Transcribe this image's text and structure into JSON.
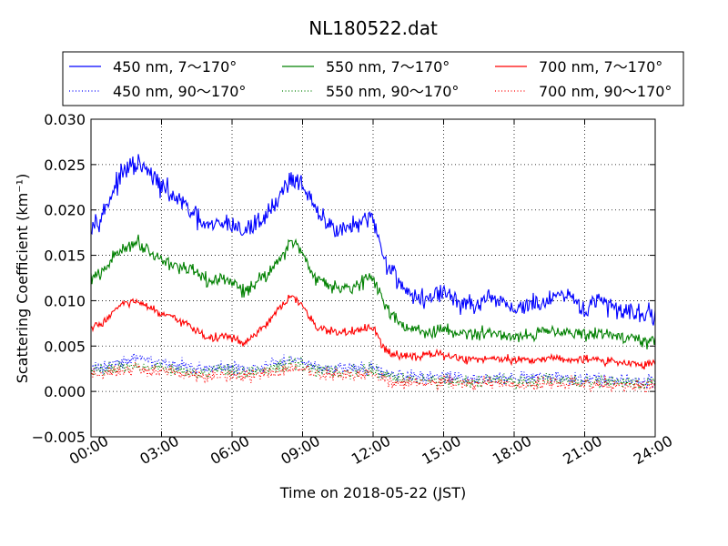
{
  "chart_data": {
    "type": "line",
    "title": "NL180522.dat",
    "xlabel": "Time on 2018-05-22 (JST)",
    "ylabel": "Scattering Coefficient (km⁻¹)",
    "xlim_hours": [
      0,
      24
    ],
    "ylim": [
      -0.005,
      0.03
    ],
    "yticks": [
      "0.030",
      "0.025",
      "0.020",
      "0.015",
      "0.010",
      "0.005",
      "0.000",
      "−0.005"
    ],
    "xticks": [
      "00:00",
      "03:00",
      "06:00",
      "09:00",
      "12:00",
      "15:00",
      "18:00",
      "21:00",
      "24:00"
    ],
    "grid": true,
    "legend_position": "top (above plot), 3 columns",
    "x": [
      0,
      0.5,
      1,
      1.5,
      2,
      2.5,
      3,
      3.5,
      4,
      4.5,
      5,
      5.5,
      6,
      6.5,
      7,
      7.5,
      8,
      8.5,
      9,
      9.5,
      10,
      10.5,
      11,
      11.5,
      12,
      12.5,
      13,
      13.5,
      14,
      14.5,
      15,
      15.5,
      16,
      16.5,
      17,
      17.5,
      18,
      18.5,
      19,
      19.5,
      20,
      20.5,
      21,
      21.5,
      22,
      22.5,
      23,
      23.5,
      24
    ],
    "series": [
      {
        "name": "450 nm, 7～170°",
        "color": "#0000ff",
        "style": "solid",
        "values": [
          0.0185,
          0.0195,
          0.0225,
          0.0245,
          0.025,
          0.024,
          0.0225,
          0.0215,
          0.0205,
          0.019,
          0.018,
          0.0185,
          0.0185,
          0.0175,
          0.0185,
          0.0195,
          0.0215,
          0.0235,
          0.023,
          0.02,
          0.0185,
          0.018,
          0.018,
          0.0185,
          0.019,
          0.0145,
          0.0125,
          0.011,
          0.01,
          0.0105,
          0.011,
          0.01,
          0.0095,
          0.0095,
          0.01,
          0.01,
          0.009,
          0.0095,
          0.0095,
          0.01,
          0.0105,
          0.01,
          0.009,
          0.01,
          0.0095,
          0.009,
          0.009,
          0.0085,
          0.0085
        ]
      },
      {
        "name": "550 nm, 7～170°",
        "color": "#008000",
        "style": "solid",
        "values": [
          0.0125,
          0.013,
          0.015,
          0.016,
          0.0165,
          0.0155,
          0.0145,
          0.014,
          0.0135,
          0.013,
          0.012,
          0.0125,
          0.012,
          0.011,
          0.012,
          0.013,
          0.0145,
          0.0165,
          0.0155,
          0.0125,
          0.012,
          0.0115,
          0.0115,
          0.012,
          0.0125,
          0.0095,
          0.008,
          0.007,
          0.0065,
          0.0065,
          0.0068,
          0.0065,
          0.0063,
          0.0063,
          0.0065,
          0.0063,
          0.006,
          0.0063,
          0.0063,
          0.0068,
          0.0068,
          0.0065,
          0.006,
          0.0065,
          0.0063,
          0.006,
          0.006,
          0.0055,
          0.0055
        ]
      },
      {
        "name": "700 nm, 7～170°",
        "color": "#ff0000",
        "style": "solid",
        "values": [
          0.007,
          0.0075,
          0.009,
          0.0098,
          0.0098,
          0.0092,
          0.0085,
          0.008,
          0.0075,
          0.0068,
          0.0058,
          0.006,
          0.006,
          0.0052,
          0.0062,
          0.0075,
          0.009,
          0.0105,
          0.0095,
          0.0072,
          0.0068,
          0.0065,
          0.0065,
          0.0068,
          0.007,
          0.0045,
          0.004,
          0.004,
          0.004,
          0.004,
          0.004,
          0.0038,
          0.0035,
          0.0035,
          0.0037,
          0.0037,
          0.0035,
          0.0035,
          0.0035,
          0.0037,
          0.0037,
          0.0035,
          0.0035,
          0.0035,
          0.0033,
          0.0033,
          0.003,
          0.003,
          0.003
        ]
      },
      {
        "name": "450 nm, 90～170°",
        "color": "#0000ff",
        "style": "dotted",
        "values": [
          0.0025,
          0.0027,
          0.0032,
          0.0035,
          0.0036,
          0.0034,
          0.0032,
          0.003,
          0.0028,
          0.0026,
          0.0024,
          0.0026,
          0.0026,
          0.0024,
          0.0026,
          0.0028,
          0.0032,
          0.0036,
          0.0034,
          0.0028,
          0.0027,
          0.0026,
          0.0026,
          0.0027,
          0.0028,
          0.002,
          0.0017,
          0.0016,
          0.0015,
          0.0015,
          0.0016,
          0.0015,
          0.0014,
          0.0014,
          0.0015,
          0.0015,
          0.0013,
          0.0014,
          0.0014,
          0.0015,
          0.0015,
          0.0014,
          0.0013,
          0.0014,
          0.0013,
          0.0012,
          0.0012,
          0.0011,
          0.0011
        ]
      },
      {
        "name": "550 nm, 90～170°",
        "color": "#008000",
        "style": "dotted",
        "values": [
          0.0022,
          0.0023,
          0.0026,
          0.0028,
          0.0029,
          0.0027,
          0.0026,
          0.0025,
          0.0024,
          0.0022,
          0.002,
          0.0022,
          0.0022,
          0.002,
          0.0022,
          0.0024,
          0.0027,
          0.0031,
          0.0029,
          0.0024,
          0.0023,
          0.0022,
          0.0022,
          0.0023,
          0.0024,
          0.0017,
          0.0014,
          0.0013,
          0.0012,
          0.0012,
          0.0013,
          0.0012,
          0.0011,
          0.0011,
          0.0012,
          0.0012,
          0.001,
          0.0011,
          0.0011,
          0.0012,
          0.0012,
          0.0011,
          0.001,
          0.0011,
          0.001,
          0.0009,
          0.0009,
          0.0008,
          0.0008
        ]
      },
      {
        "name": "700 nm, 90～170°",
        "color": "#ff0000",
        "style": "dotted",
        "values": [
          0.0018,
          0.0019,
          0.0022,
          0.0024,
          0.0024,
          0.0023,
          0.0022,
          0.0021,
          0.002,
          0.0018,
          0.0016,
          0.0017,
          0.0018,
          0.0016,
          0.0018,
          0.002,
          0.0023,
          0.0026,
          0.0024,
          0.002,
          0.0019,
          0.0018,
          0.0018,
          0.0019,
          0.002,
          0.0012,
          0.001,
          0.0009,
          0.0009,
          0.0009,
          0.001,
          0.0009,
          0.0008,
          0.0008,
          0.0009,
          0.0009,
          0.0008,
          0.0008,
          0.0008,
          0.0009,
          0.0009,
          0.0008,
          0.0007,
          0.0008,
          0.0007,
          0.0006,
          0.0006,
          0.0005,
          0.0005
        ]
      }
    ]
  }
}
